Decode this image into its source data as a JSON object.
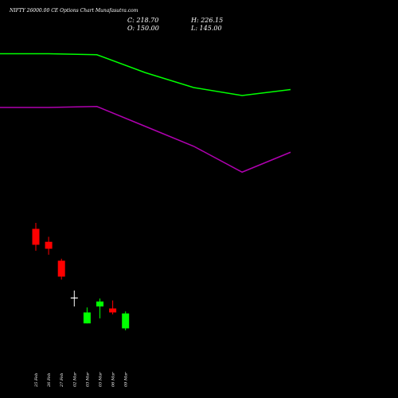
{
  "chart_data": {
    "type": "candlestick",
    "title": "NIFTY 26000.00 CE Options  Chart Munafasutra.com",
    "ohlc_info": {
      "c_label": "C: 218.70",
      "h_label": "H: 226.15",
      "o_label": "O: 150.00",
      "l_label": "L: 145.00"
    },
    "categories": [
      "25 Feb",
      "26 Feb",
      "27 Feb",
      "02 Mar",
      "03 Mar",
      "05 Mar",
      "06 Mar",
      "09 Mar"
    ],
    "candles": [
      {
        "date": "25 Feb",
        "open": 270,
        "high": 276,
        "low": 248,
        "close": 254,
        "color": "#ff0000"
      },
      {
        "date": "26 Feb",
        "open": 257,
        "high": 262,
        "low": 244,
        "close": 250,
        "color": "#ff0000"
      },
      {
        "date": "27 Feb",
        "open": 238,
        "high": 240,
        "low": 219,
        "close": 222,
        "color": "#ff0000"
      },
      {
        "date": "02 Mar",
        "open": 201,
        "high": 208,
        "low": 192,
        "close": 201,
        "color": "#ffffff"
      },
      {
        "date": "03 Mar",
        "open": 175,
        "high": 191,
        "low": 175,
        "close": 186,
        "color": "#00ff00"
      },
      {
        "date": "05 Mar",
        "open": 192,
        "high": 200,
        "low": 180,
        "close": 197,
        "color": "#00ff00"
      },
      {
        "date": "06 Mar",
        "open": 190,
        "high": 198,
        "low": 184,
        "close": 186,
        "color": "#ff0000"
      },
      {
        "date": "09 Mar",
        "open": 170,
        "high": 187,
        "low": 168,
        "close": 185,
        "color": "#00ff00"
      }
    ],
    "series": [
      {
        "color": "#00ff00",
        "x": [
          0,
          2,
          4,
          6,
          8,
          10,
          12
        ],
        "values": [
          446,
          446,
          445,
          427,
          412,
          404,
          410
        ]
      },
      {
        "color": "#b000b0",
        "x": [
          0,
          2,
          4,
          6,
          8,
          10,
          12
        ],
        "values": [
          392,
          392,
          393,
          373,
          353,
          327,
          347
        ]
      }
    ],
    "ylim": [
      100,
      500
    ],
    "grid": false
  }
}
